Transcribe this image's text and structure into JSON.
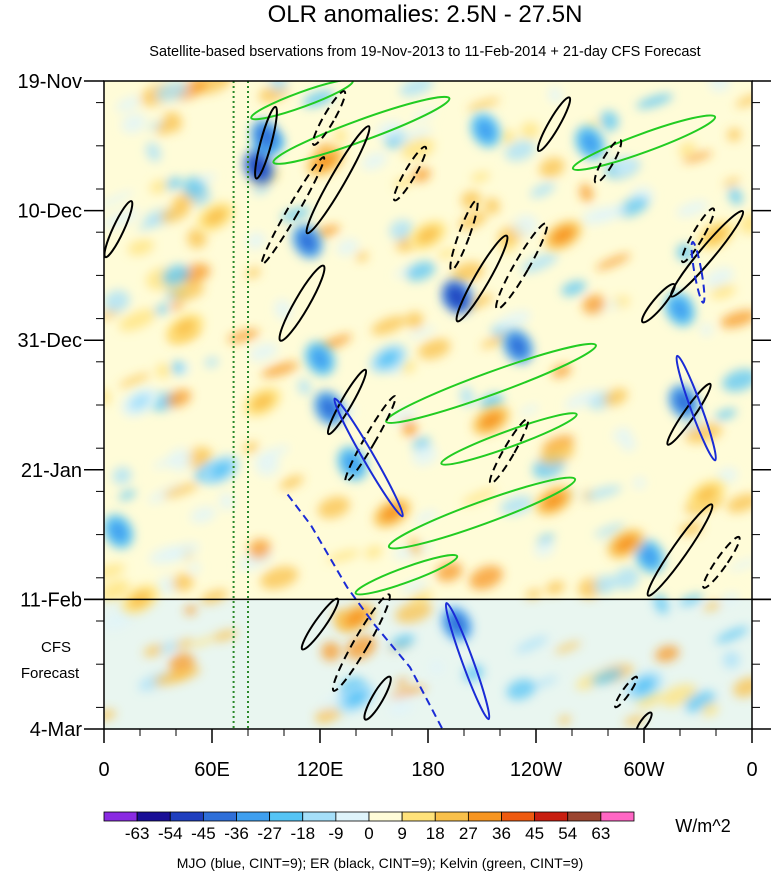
{
  "chart_data": {
    "type": "heatmap",
    "title": "OLR anomalies: 2.5N - 27.5N",
    "subtitle": "Satellite-based bservations from 19-Nov-2013 to 11-Feb-2014 + 21-day CFS Forecast",
    "x_ticks": [
      {
        "lon": 0,
        "label": "0"
      },
      {
        "lon": 60,
        "label": "60E"
      },
      {
        "lon": 120,
        "label": "120E"
      },
      {
        "lon": 180,
        "label": "180"
      },
      {
        "lon": 240,
        "label": "120W"
      },
      {
        "lon": 300,
        "label": "60W"
      },
      {
        "lon": 360,
        "label": "0"
      }
    ],
    "y_ticks": [
      {
        "day": 0,
        "label": "19-Nov"
      },
      {
        "day": 21,
        "label": "10-Dec"
      },
      {
        "day": 42,
        "label": "31-Dec"
      },
      {
        "day": 63,
        "label": "21-Jan"
      },
      {
        "day": 84,
        "label": "11-Feb"
      },
      {
        "day": 105,
        "label": "4-Mar"
      }
    ],
    "xlim": [
      0,
      360
    ],
    "ylim_days": [
      0,
      105
    ],
    "forecast_start_day": 84,
    "forecast_label_line1": "CFS",
    "forecast_label_line2": "Forecast",
    "colorbar": {
      "unit": "W/m^2",
      "labels": [
        "-63",
        "-54",
        "-45",
        "-36",
        "-27",
        "-18",
        "-9",
        "0",
        "9",
        "18",
        "27",
        "36",
        "45",
        "54",
        "63"
      ],
      "colors": [
        "#8a2be2",
        "#1a0f96",
        "#1f3fbf",
        "#2f6fd8",
        "#3f9fef",
        "#55c4f5",
        "#a5dff9",
        "#dff4fb",
        "#fffcd8",
        "#ffe27a",
        "#f9c04a",
        "#f79520",
        "#ee5a10",
        "#c81e10",
        "#9b4530",
        "#ff66c4"
      ]
    },
    "footer": "MJO (blue, CINT=9); ER (black, CINT=9); Kelvin (green, CINT=9)",
    "series_colors": {
      "mjo": "#1a2bd6",
      "er": "#000000",
      "kelvin": "#22cc22",
      "reference_lines": "#2a8a2a"
    },
    "reference_lons": [
      72,
      80
    ],
    "anomaly_features": [
      {
        "lon": 86,
        "day": 14,
        "value": -54
      },
      {
        "lon": 90,
        "day": 9,
        "value": -45
      },
      {
        "lon": 113,
        "day": 26,
        "value": -45
      },
      {
        "lon": 120,
        "day": 45,
        "value": -36
      },
      {
        "lon": 125,
        "day": 53,
        "value": -45
      },
      {
        "lon": 138,
        "day": 62,
        "value": -36
      },
      {
        "lon": 158,
        "day": 45,
        "value": -27
      },
      {
        "lon": 196,
        "day": 35,
        "value": -54
      },
      {
        "lon": 230,
        "day": 43,
        "value": -45
      },
      {
        "lon": 212,
        "day": 8,
        "value": -36
      },
      {
        "lon": 270,
        "day": 10,
        "value": -36
      },
      {
        "lon": 320,
        "day": 37,
        "value": -36
      },
      {
        "lon": 322,
        "day": 52,
        "value": -45
      },
      {
        "lon": 303,
        "day": 77,
        "value": -36
      },
      {
        "lon": 196,
        "day": 88,
        "value": -45
      },
      {
        "lon": 140,
        "day": 100,
        "value": -27
      },
      {
        "lon": 300,
        "day": 98,
        "value": -27
      },
      {
        "lon": 20,
        "day": 52,
        "value": -18
      },
      {
        "lon": 8,
        "day": 73,
        "value": -36
      },
      {
        "lon": 65,
        "day": 63,
        "value": -27
      },
      {
        "lon": 123,
        "day": 13,
        "value": 27
      },
      {
        "lon": 180,
        "day": 25,
        "value": 18
      },
      {
        "lon": 215,
        "day": 55,
        "value": 27
      },
      {
        "lon": 255,
        "day": 25,
        "value": 27
      },
      {
        "lon": 250,
        "day": 68,
        "value": 27
      },
      {
        "lon": 160,
        "day": 70,
        "value": 27
      },
      {
        "lon": 88,
        "day": 52,
        "value": 18
      },
      {
        "lon": 62,
        "day": 22,
        "value": 18
      },
      {
        "lon": 20,
        "day": 84,
        "value": 18
      },
      {
        "lon": 290,
        "day": 75,
        "value": 27
      },
      {
        "lon": 140,
        "day": 87,
        "value": 27
      },
      {
        "lon": 335,
        "day": 67,
        "value": 18
      },
      {
        "lon": 340,
        "day": 25,
        "value": 18
      },
      {
        "lon": 45,
        "day": 40,
        "value": 18
      }
    ],
    "kelvin_contours": [
      {
        "lon": 143,
        "day": 8,
        "rx": 52,
        "ry": 1.7,
        "rot": -20
      },
      {
        "lon": 300,
        "day": 10,
        "rx": 42,
        "ry": 1.5,
        "rot": -20
      },
      {
        "lon": 215,
        "day": 49,
        "rx": 62,
        "ry": 1.8,
        "rot": -20
      },
      {
        "lon": 210,
        "day": 70,
        "rx": 55,
        "ry": 1.8,
        "rot": -20
      },
      {
        "lon": 168,
        "day": 80,
        "rx": 30,
        "ry": 1.2,
        "rot": -20
      },
      {
        "lon": 225,
        "day": 58,
        "rx": 40,
        "ry": 1.3,
        "rot": -20
      },
      {
        "lon": 110,
        "day": 3,
        "rx": 30,
        "ry": 1.2,
        "rot": -20
      }
    ],
    "er_contours": [
      {
        "lon": 90,
        "day": 10,
        "rx": 3,
        "ry": 6,
        "rot": 15,
        "dash": false
      },
      {
        "lon": 105,
        "day": 21,
        "rx": 3,
        "ry": 10,
        "rot": 30,
        "dash": true
      },
      {
        "lon": 130,
        "day": 16,
        "rx": 4,
        "ry": 10,
        "rot": 30,
        "dash": false
      },
      {
        "lon": 170,
        "day": 15,
        "rx": 3,
        "ry": 5,
        "rot": 30,
        "dash": true
      },
      {
        "lon": 125,
        "day": 6,
        "rx": 3,
        "ry": 5,
        "rot": 30,
        "dash": true
      },
      {
        "lon": 110,
        "day": 36,
        "rx": 4,
        "ry": 7,
        "rot": 30,
        "dash": false
      },
      {
        "lon": 210,
        "day": 32,
        "rx": 4,
        "ry": 8,
        "rot": 30,
        "dash": false
      },
      {
        "lon": 232,
        "day": 30,
        "rx": 4,
        "ry": 8,
        "rot": 30,
        "dash": true
      },
      {
        "lon": 200,
        "day": 25,
        "rx": 3,
        "ry": 6,
        "rot": 20,
        "dash": true
      },
      {
        "lon": 250,
        "day": 7,
        "rx": 3,
        "ry": 5,
        "rot": 30,
        "dash": false
      },
      {
        "lon": 280,
        "day": 13,
        "rx": 3,
        "ry": 4,
        "rot": 30,
        "dash": true
      },
      {
        "lon": 135,
        "day": 52,
        "rx": 3,
        "ry": 6,
        "rot": 30,
        "dash": false
      },
      {
        "lon": 148,
        "day": 58,
        "rx": 3,
        "ry": 8,
        "rot": 30,
        "dash": true
      },
      {
        "lon": 225,
        "day": 60,
        "rx": 3,
        "ry": 6,
        "rot": 30,
        "dash": true
      },
      {
        "lon": 335,
        "day": 28,
        "rx": 4,
        "ry": 9,
        "rot": 40,
        "dash": false
      },
      {
        "lon": 330,
        "day": 25,
        "rx": 3,
        "ry": 5,
        "rot": 30,
        "dash": true
      },
      {
        "lon": 308,
        "day": 36,
        "rx": 3,
        "ry": 4,
        "rot": 40,
        "dash": false
      },
      {
        "lon": 325,
        "day": 54,
        "rx": 3,
        "ry": 6,
        "rot": 35,
        "dash": false
      },
      {
        "lon": 320,
        "day": 76,
        "rx": 4,
        "ry": 9,
        "rot": 35,
        "dash": false
      },
      {
        "lon": 343,
        "day": 78,
        "rx": 3,
        "ry": 5,
        "rot": 35,
        "dash": true
      },
      {
        "lon": 120,
        "day": 88,
        "rx": 3,
        "ry": 5,
        "rot": 35,
        "dash": false
      },
      {
        "lon": 143,
        "day": 91,
        "rx": 4,
        "ry": 9,
        "rot": 30,
        "dash": true
      },
      {
        "lon": 152,
        "day": 100,
        "rx": 3,
        "ry": 4,
        "rot": 30,
        "dash": false
      },
      {
        "lon": 290,
        "day": 99,
        "rx": 2,
        "ry": 3,
        "rot": 35,
        "dash": true
      },
      {
        "lon": 300,
        "day": 104,
        "rx": 2,
        "ry": 2,
        "rot": 35,
        "dash": false
      },
      {
        "lon": 8,
        "day": 24,
        "rx": 3,
        "ry": 5,
        "rot": 25,
        "dash": false
      }
    ],
    "mjo_contours": [
      {
        "lon": 329,
        "day": 53,
        "rx": 3,
        "ry": 9,
        "rot": -20,
        "dash": false
      },
      {
        "lon": 147,
        "day": 61,
        "rx": 3,
        "ry": 11,
        "rot": -30,
        "dash": false
      },
      {
        "lon": 202,
        "day": 94,
        "rx": 3,
        "ry": 10,
        "rot": -20,
        "dash": false
      },
      {
        "lon": 330,
        "day": 31,
        "rx": 2,
        "ry": 5,
        "rot": -10,
        "dash": true
      }
    ],
    "mjo_dashed_path_days": [
      {
        "lon": 102,
        "day": 67
      },
      {
        "lon": 115,
        "day": 72
      },
      {
        "lon": 135,
        "day": 82
      },
      {
        "lon": 150,
        "day": 88
      },
      {
        "lon": 170,
        "day": 95
      },
      {
        "lon": 188,
        "day": 105
      }
    ]
  }
}
